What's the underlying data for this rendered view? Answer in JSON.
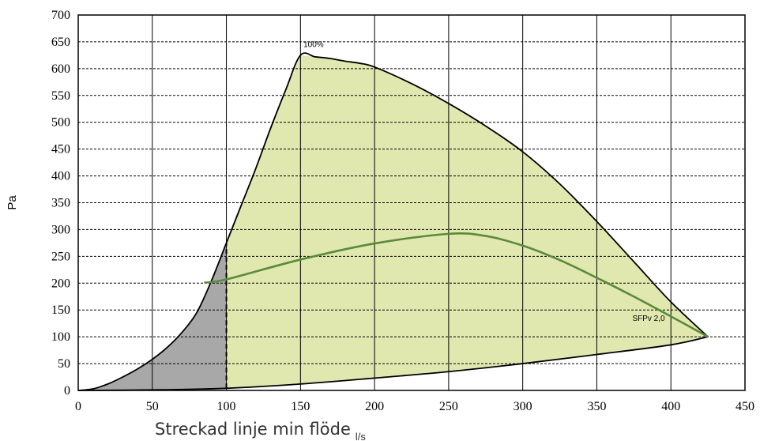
{
  "chart_data": {
    "type": "area",
    "title": "",
    "ylabel": "Pa",
    "xlabel": "Streckad linje min flöde",
    "xunit": "l/s",
    "xlim": [
      0,
      450
    ],
    "ylim": [
      0,
      700
    ],
    "xticks": [
      0,
      50,
      100,
      150,
      200,
      250,
      300,
      350,
      400,
      450
    ],
    "yticks": [
      0,
      50,
      100,
      150,
      200,
      250,
      300,
      350,
      400,
      450,
      500,
      550,
      600,
      650,
      700
    ],
    "grid": true,
    "min_flow_line_x": 100,
    "colors": {
      "operating_area": "#e0e8b0",
      "below_min_flow": "#a8a8a8",
      "sfp_line": "#5a8a3a",
      "outline": "#000000"
    },
    "series": [
      {
        "name": "",
        "role": "upper boundary",
        "points": [
          [
            0,
            0
          ],
          [
            10,
            3
          ],
          [
            20,
            12
          ],
          [
            30,
            25
          ],
          [
            40,
            40
          ],
          [
            50,
            58
          ],
          [
            60,
            80
          ],
          [
            70,
            108
          ],
          [
            80,
            145
          ],
          [
            90,
            205
          ],
          [
            100,
            275
          ],
          [
            110,
            345
          ],
          [
            120,
            415
          ],
          [
            130,
            490
          ],
          [
            140,
            560
          ],
          [
            150,
            625
          ],
          [
            160,
            622
          ],
          [
            170,
            619
          ],
          [
            180,
            614
          ],
          [
            190,
            610
          ],
          [
            200,
            603
          ],
          [
            225,
            572
          ],
          [
            250,
            535
          ],
          [
            275,
            493
          ],
          [
            300,
            445
          ],
          [
            325,
            385
          ],
          [
            350,
            315
          ],
          [
            375,
            240
          ],
          [
            400,
            165
          ],
          [
            425,
            100
          ]
        ]
      },
      {
        "name": "",
        "role": "lower boundary",
        "points": [
          [
            0,
            0
          ],
          [
            50,
            1
          ],
          [
            100,
            4
          ],
          [
            150,
            12
          ],
          [
            200,
            23
          ],
          [
            250,
            35
          ],
          [
            300,
            50
          ],
          [
            350,
            67
          ],
          [
            400,
            85
          ],
          [
            425,
            100
          ]
        ]
      },
      {
        "name": "SFPv 2,0",
        "points": [
          [
            85,
            201
          ],
          [
            100,
            207
          ],
          [
            150,
            244
          ],
          [
            200,
            274
          ],
          [
            250,
            292
          ],
          [
            275,
            288
          ],
          [
            300,
            270
          ],
          [
            325,
            243
          ],
          [
            350,
            210
          ],
          [
            375,
            175
          ],
          [
            400,
            138
          ],
          [
            425,
            100
          ]
        ]
      }
    ],
    "annotations": [
      {
        "text": "100%",
        "x": 152,
        "y": 640
      },
      {
        "text": "SFPv 2,0",
        "x": 374,
        "y": 130
      }
    ]
  }
}
